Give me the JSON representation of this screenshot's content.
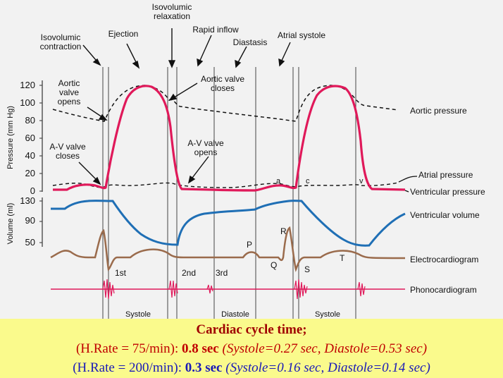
{
  "labels": {
    "isovolumic_contraction": [
      "Isovolumic",
      "contraction"
    ],
    "ejection": "Ejection",
    "isovolumic_relaxation": [
      "Isovolumic",
      "relaxation"
    ],
    "rapid_inflow": "Rapid inflow",
    "diastasis": "Diastasis",
    "atrial_systole": "Atrial systole",
    "aortic_valve_opens": [
      "Aortic",
      "valve",
      "opens"
    ],
    "aortic_valve_closes": [
      "Aortic valve",
      "closes"
    ],
    "av_valve_closes": [
      "A-V valve",
      "closes"
    ],
    "av_valve_opens": [
      "A-V valve",
      "opens"
    ],
    "aortic_pressure": "Aortic pressure",
    "atrial_pressure": "Atrial pressure",
    "ventricular_pressure": "Ventricular pressure",
    "ventricular_volume": "Ventricular volume",
    "electrocardiogram": "Electrocardiogram",
    "phonocardiogram": "Phonocardiogram",
    "pressure_axis": "Pressure (mm Hg)",
    "volume_axis": "Volume (ml)",
    "heart_sound_1": "1st",
    "heart_sound_2": "2nd",
    "heart_sound_3": "3rd",
    "systole_1": "Systole",
    "diastole": "Diastole",
    "systole_2": "Systole",
    "wave_a": "a",
    "wave_c": "c",
    "wave_v": "v",
    "ecg_p": "P",
    "ecg_q": "Q",
    "ecg_r": "R",
    "ecg_s": "S",
    "ecg_t": "T"
  },
  "axes": {
    "pressure_ticks": [
      "120",
      "100",
      "80",
      "60",
      "40",
      "20",
      "0"
    ],
    "volume_ticks": [
      "130",
      "90",
      "50"
    ]
  },
  "caption": {
    "title": "Cardiac cycle time;",
    "row1": {
      "hr_open": "(H.Rate = 75/min):",
      "cycle": "0.8 sec",
      "detail": "(Systole=0.27 sec, Diastole=0.53 sec)"
    },
    "row2": {
      "hr_open": "(H.Rate = 200/min):",
      "cycle": "0.3 sec",
      "detail": "(Systole=0.16 sec, Diastole=0.14 sec)"
    }
  },
  "colors": {
    "ventricular_pressure": "#e0195a",
    "ventricular_volume": "#1f6fb5",
    "electrocardiogram": "#9a6b4c",
    "phonocardiogram": "#e0195a",
    "caption_background": "#fafa8c",
    "caption_title": "#a00000",
    "row1_text": "#c00000",
    "row2_text": "#1a1ab8"
  }
}
